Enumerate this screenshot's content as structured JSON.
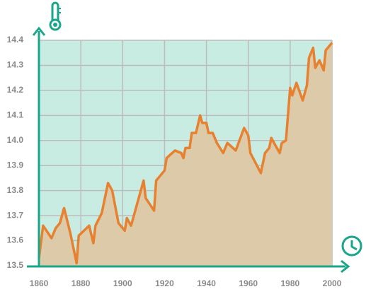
{
  "chart_data": {
    "type": "line",
    "x": [
      1860,
      1862,
      1866,
      1868,
      1870,
      1872,
      1875,
      1878,
      1879,
      1884,
      1886,
      1887,
      1890,
      1893,
      1895,
      1898,
      1901,
      1902,
      1904,
      1910,
      1911,
      1915,
      1916,
      1920,
      1921,
      1925,
      1928,
      1929,
      1930,
      1932,
      1933,
      1935,
      1937,
      1938,
      1940,
      1941,
      1943,
      1945,
      1948,
      1950,
      1954,
      1958,
      1960,
      1961,
      1966,
      1968,
      1970,
      1971,
      1975,
      1976,
      1978,
      1980,
      1981,
      1983,
      1986,
      1988,
      1989,
      1991,
      1992,
      1994,
      1996,
      1997,
      2000
    ],
    "values": [
      13.53,
      13.66,
      13.61,
      13.65,
      13.67,
      13.73,
      13.63,
      13.51,
      13.62,
      13.66,
      13.59,
      13.66,
      13.71,
      13.83,
      13.8,
      13.67,
      13.64,
      13.69,
      13.66,
      13.84,
      13.77,
      13.72,
      13.84,
      13.88,
      13.93,
      13.96,
      13.95,
      13.93,
      13.97,
      13.97,
      14.03,
      14.03,
      14.1,
      14.07,
      14.07,
      14.03,
      14.03,
      13.99,
      13.95,
      13.99,
      13.96,
      14.05,
      14.02,
      13.95,
      13.87,
      13.95,
      13.97,
      14.01,
      13.95,
      13.99,
      14.0,
      14.21,
      14.18,
      14.23,
      14.16,
      14.22,
      14.33,
      14.37,
      14.29,
      14.32,
      14.28,
      14.36,
      14.39
    ],
    "color": "#e8812f",
    "xlim": [
      1860,
      2000
    ],
    "xticks": [
      1860,
      1880,
      1900,
      1920,
      1940,
      1960,
      1980,
      2000
    ],
    "ylim": [
      13.5,
      14.4
    ],
    "yticks": [
      13.5,
      13.6,
      13.7,
      13.8,
      13.9,
      {
        "value": 14,
        "label": "14.0"
      },
      14.1,
      14.2,
      14.3,
      14.4
    ],
    "grid": true
  }
}
